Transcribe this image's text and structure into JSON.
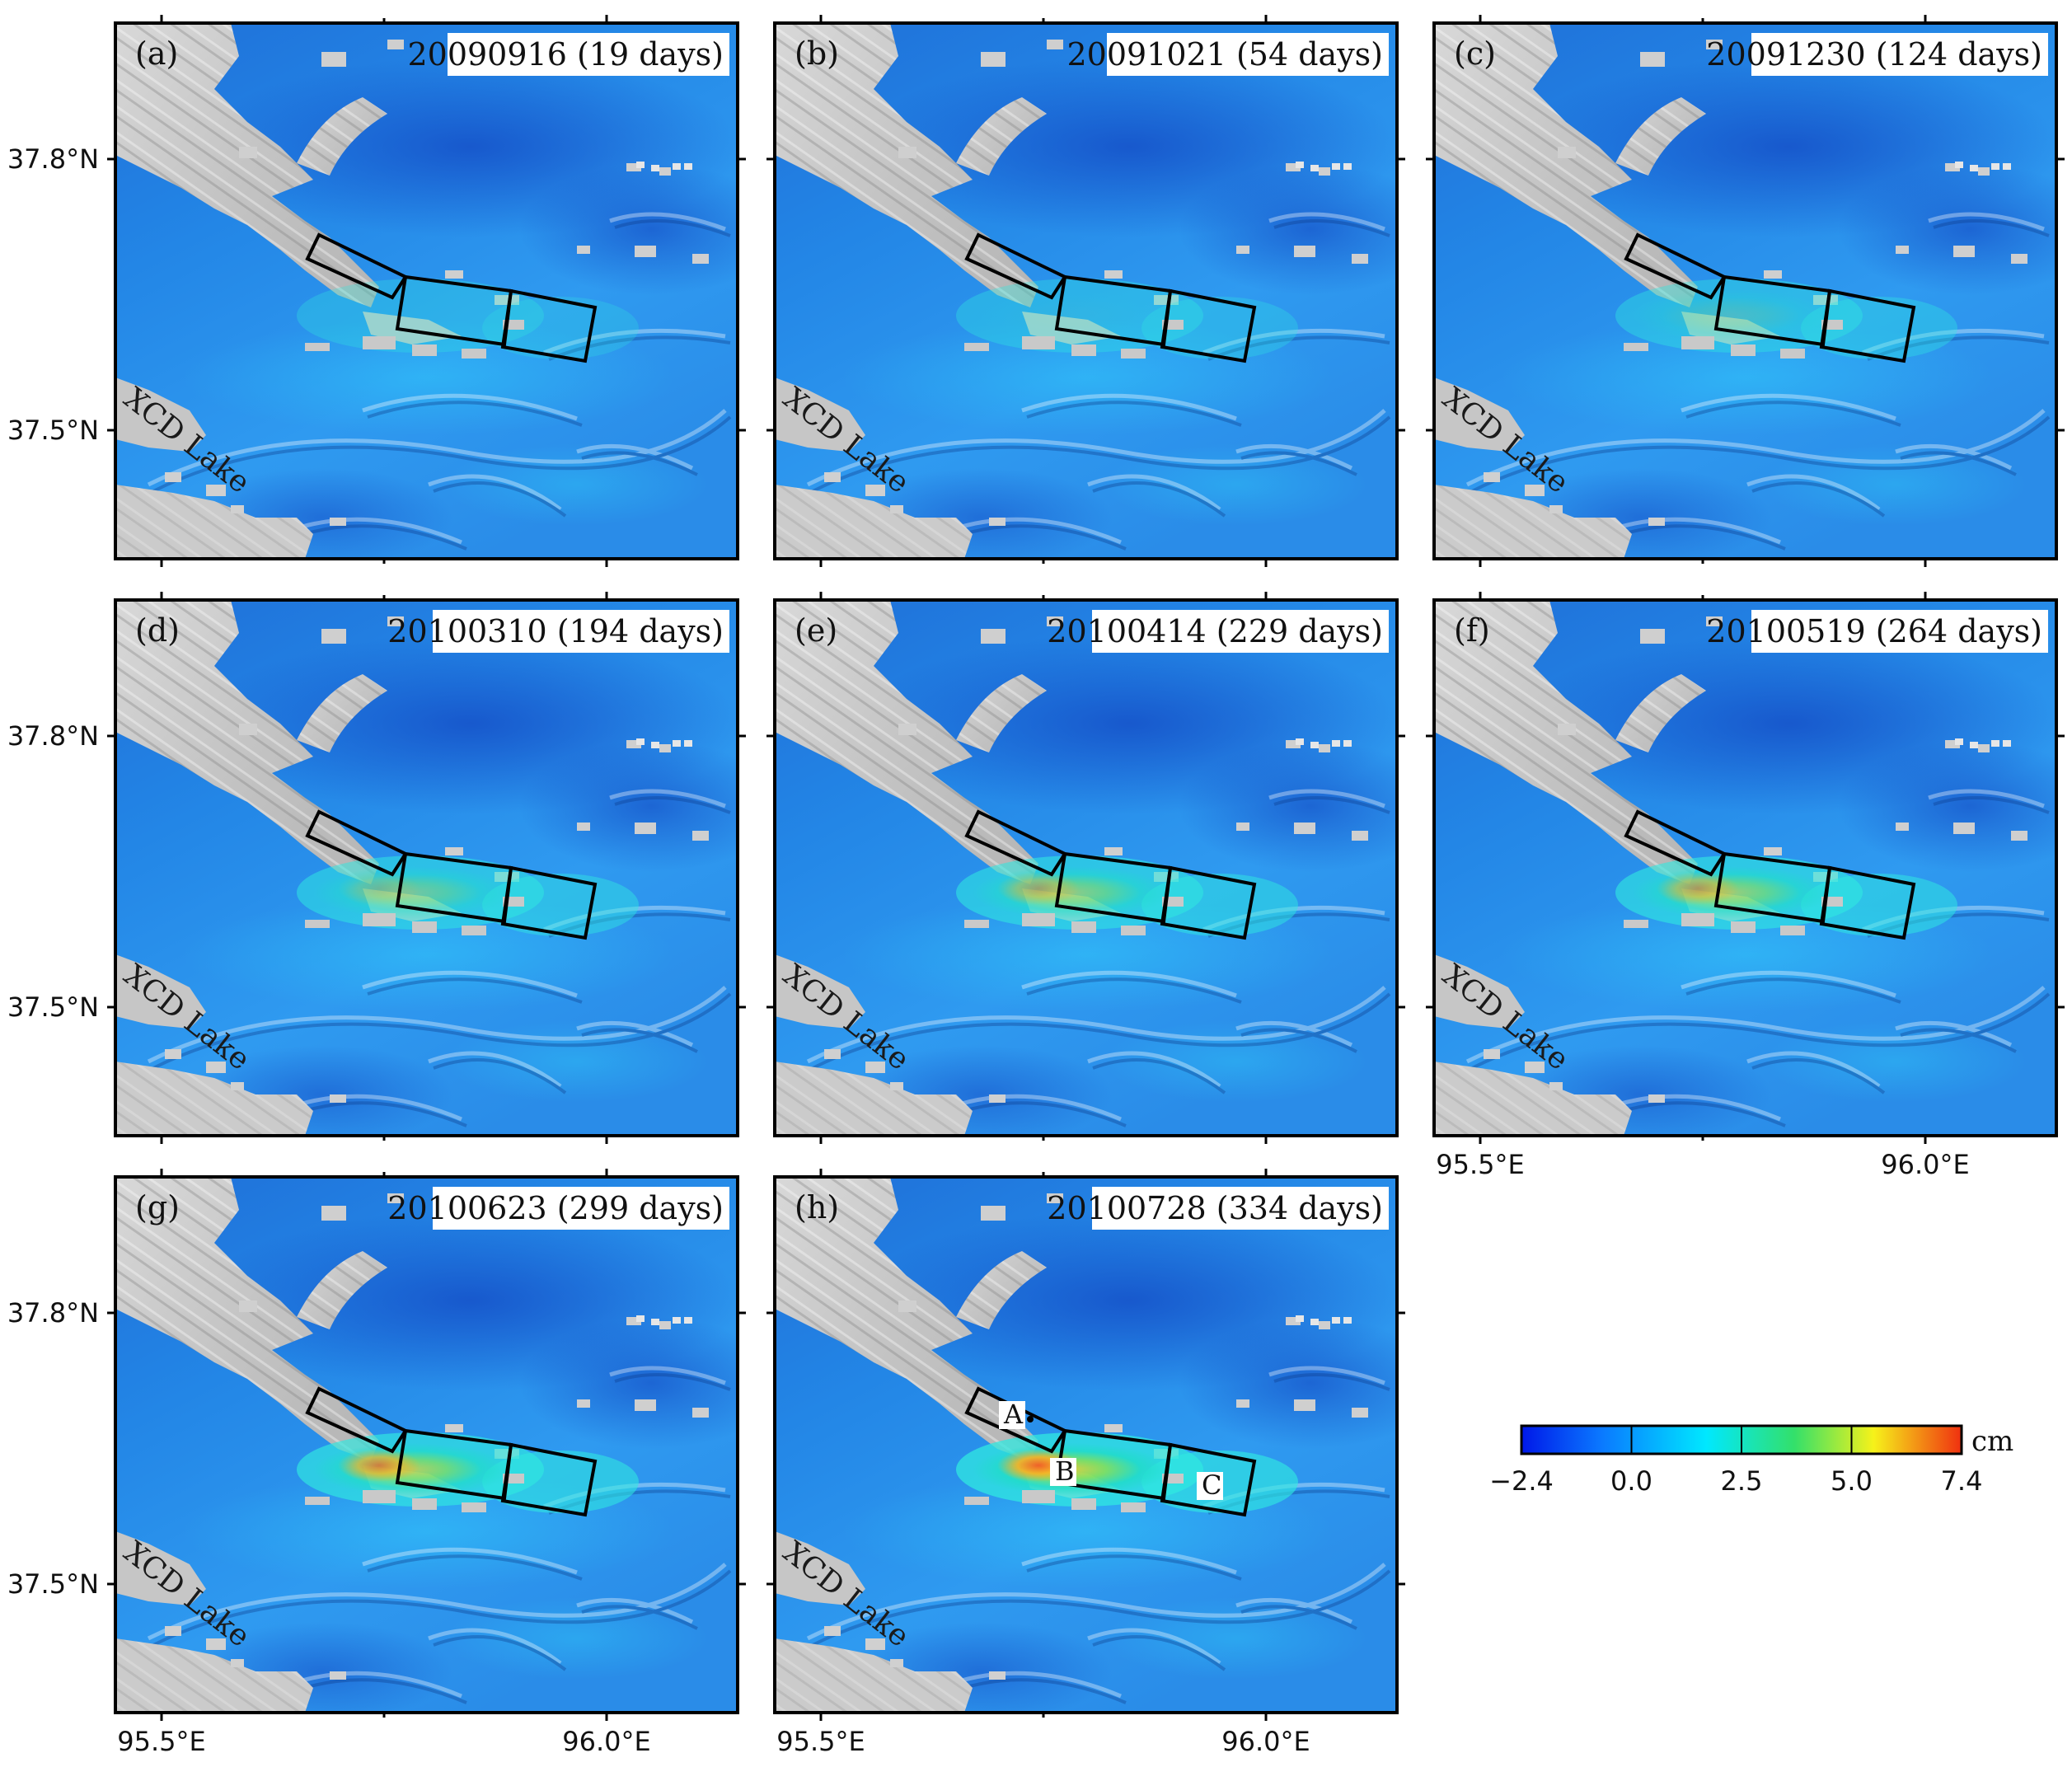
{
  "panels": [
    {
      "letter": "(a)",
      "date": "20090916 (19 days)",
      "intensity": 0.12
    },
    {
      "letter": "(b)",
      "date": "20091021 (54 days)",
      "intensity": 0.22
    },
    {
      "letter": "(c)",
      "date": "20091230 (124 days)",
      "intensity": 0.35
    },
    {
      "letter": "(d)",
      "date": "20100310 (194 days)",
      "intensity": 0.55
    },
    {
      "letter": "(e)",
      "date": "20100414 (229 days)",
      "intensity": 0.68
    },
    {
      "letter": "(f)",
      "date": "20100519 (264 days)",
      "intensity": 0.74
    },
    {
      "letter": "(g)",
      "date": "20100623 (299 days)",
      "intensity": 0.86
    },
    {
      "letter": "(h)",
      "date": "20100728 (334 days)",
      "intensity": 1.0
    }
  ],
  "axes": {
    "lat_labels": [
      "37.8°N",
      "37.5°N"
    ],
    "lon_labels": [
      "95.5°E",
      "96.0°E"
    ]
  },
  "lake_label": "XCD Lake",
  "points": [
    {
      "label": "A"
    },
    {
      "label": "B"
    },
    {
      "label": "C"
    }
  ],
  "colorbar": {
    "ticks": [
      "−2.4",
      "0.0",
      "2.5",
      "5.0",
      "7.4"
    ],
    "unit": "cm",
    "colors": [
      "#0018e8",
      "#0a78ff",
      "#00e8ff",
      "#33e06a",
      "#f6f21a",
      "#f03010"
    ]
  }
}
